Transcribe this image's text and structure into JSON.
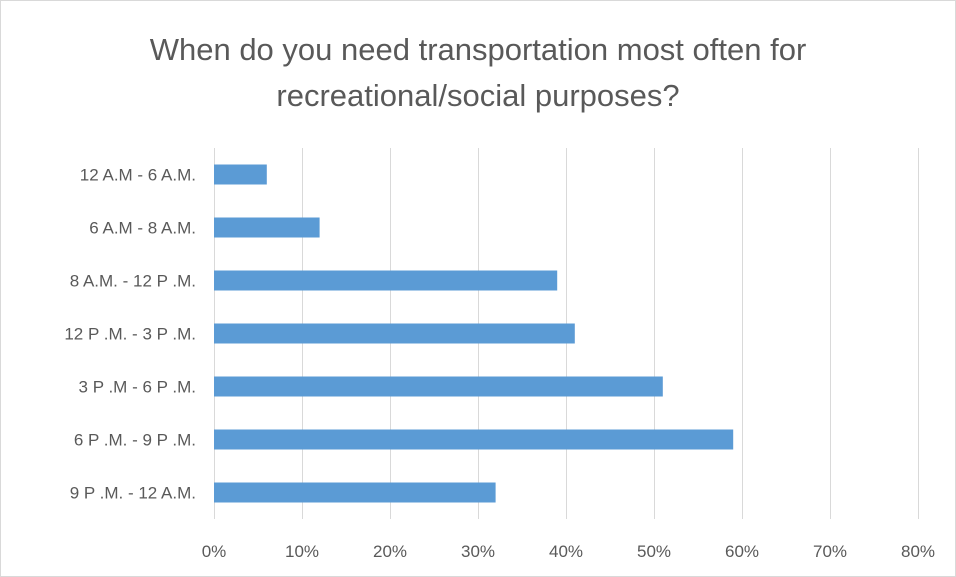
{
  "title_lines": [
    "When do you need transportation most often for",
    "recreational/social purposes?"
  ],
  "colors": {
    "bar": "#5b9bd5",
    "grid": "#d9d9d9",
    "text": "#595959",
    "border": "#d9d9d9"
  },
  "chart_data": {
    "type": "bar",
    "orientation": "horizontal",
    "title": "When do you need transportation most often for recreational/social purposes?",
    "categories": [
      "12 A.M - 6 A.M.",
      "6 A.M - 8 A.M.",
      "8 A.M. - 12 P .M.",
      "12 P .M. - 3 P .M.",
      "3 P .M - 6 P .M.",
      "6 P .M. - 9 P .M.",
      "9 P .M. - 12 A.M."
    ],
    "values": [
      6,
      12,
      39,
      41,
      51,
      59,
      32
    ],
    "xlim": [
      0,
      80
    ],
    "xticks": [
      0,
      10,
      20,
      30,
      40,
      50,
      60,
      70,
      80
    ],
    "xtick_labels": [
      "0%",
      "10%",
      "20%",
      "30%",
      "40%",
      "50%",
      "60%",
      "70%",
      "80%"
    ],
    "xlabel": "",
    "ylabel": "",
    "grid": "vertical",
    "legend": "none"
  }
}
